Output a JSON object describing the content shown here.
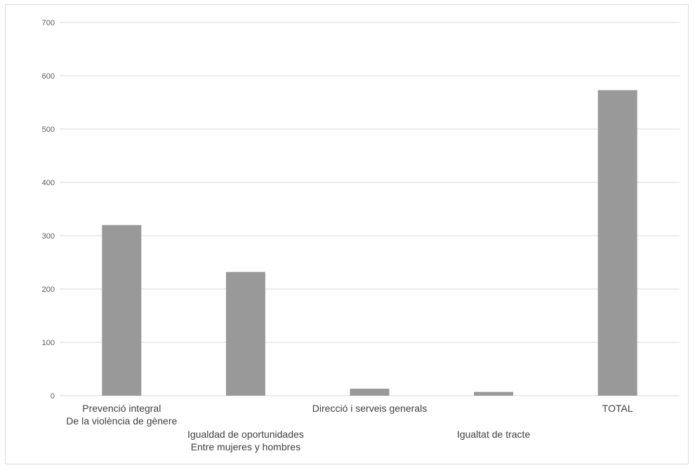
{
  "chart_data": {
    "type": "bar",
    "categories": [
      [
        "Prevenció integral",
        "De la violència de gènere"
      ],
      [
        "Igualdad de oportunidades",
        "Entre mujeres y hombres"
      ],
      [
        "Direcció i serveis generals"
      ],
      [
        "Igualtat de tracte"
      ],
      [
        "TOTAL"
      ]
    ],
    "values": [
      320,
      232,
      13,
      7,
      573
    ],
    "ylim": [
      0,
      700
    ],
    "yticks": [
      0,
      100,
      200,
      300,
      400,
      500,
      600,
      700
    ],
    "grid": true,
    "bar_color": "#999999",
    "grid_color": "#d9d9d9"
  }
}
